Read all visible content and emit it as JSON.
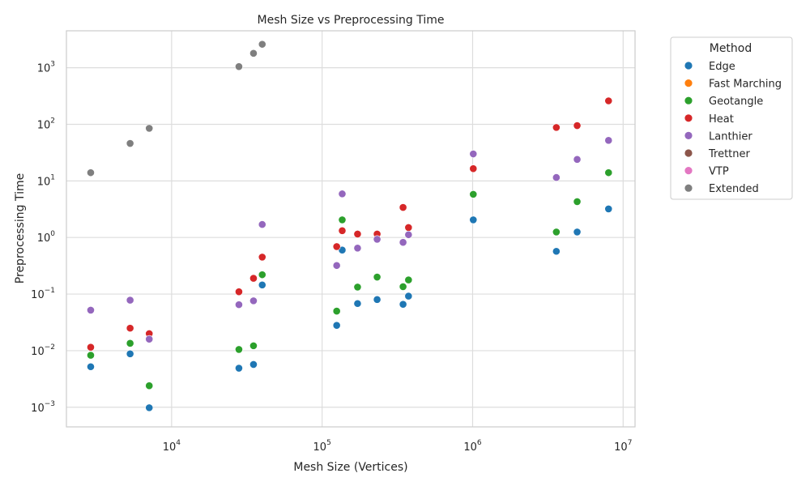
{
  "chart_data": {
    "type": "scatter",
    "title": "Mesh Size vs Preprocessing Time",
    "xlabel": "Mesh Size (Vertices)",
    "ylabel": "Preprocessing Time",
    "xscale": "log",
    "yscale": "log",
    "xlim": [
      2000,
      12000000
    ],
    "ylim": [
      0.00045,
      4500
    ],
    "grid": true,
    "x_ticks": [
      {
        "value": 10000,
        "base": "10",
        "exp": "4"
      },
      {
        "value": 100000,
        "base": "10",
        "exp": "5"
      },
      {
        "value": 1000000,
        "base": "10",
        "exp": "6"
      },
      {
        "value": 10000000,
        "base": "10",
        "exp": "7"
      }
    ],
    "y_ticks": [
      {
        "value": 0.001,
        "base": "10",
        "exp": "−3"
      },
      {
        "value": 0.01,
        "base": "10",
        "exp": "−2"
      },
      {
        "value": 0.1,
        "base": "10",
        "exp": "−1"
      },
      {
        "value": 1,
        "base": "10",
        "exp": "0"
      },
      {
        "value": 10,
        "base": "10",
        "exp": "1"
      },
      {
        "value": 100,
        "base": "10",
        "exp": "2"
      },
      {
        "value": 1000,
        "base": "10",
        "exp": "3"
      }
    ],
    "legend": {
      "title": "Method",
      "position": "outside-right"
    },
    "series": [
      {
        "name": "Edge",
        "color": "#1f77b4",
        "points": [
          [
            2900,
            0.0052
          ],
          [
            5300,
            0.0088
          ],
          [
            7100,
            0.00098
          ],
          [
            28000,
            0.0049
          ],
          [
            35000,
            0.0057
          ],
          [
            40000,
            0.145
          ],
          [
            125000,
            0.028
          ],
          [
            136000,
            0.6
          ],
          [
            172000,
            0.068
          ],
          [
            232000,
            0.08
          ],
          [
            345000,
            0.066
          ],
          [
            375000,
            0.092
          ],
          [
            1010000,
            2.05
          ],
          [
            3600000,
            0.57
          ],
          [
            4950000,
            1.25
          ],
          [
            8000000,
            3.2
          ]
        ]
      },
      {
        "name": "Fast Marching",
        "color": "#ff7f0e",
        "points": []
      },
      {
        "name": "Geotangle",
        "color": "#2ca02c",
        "points": [
          [
            2900,
            0.0083
          ],
          [
            5300,
            0.0135
          ],
          [
            7100,
            0.0024
          ],
          [
            28000,
            0.0105
          ],
          [
            35000,
            0.0122
          ],
          [
            40000,
            0.22
          ],
          [
            125000,
            0.05
          ],
          [
            136000,
            2.05
          ],
          [
            172000,
            0.133
          ],
          [
            232000,
            0.2
          ],
          [
            345000,
            0.135
          ],
          [
            375000,
            0.178
          ],
          [
            1010000,
            5.8
          ],
          [
            3600000,
            1.25
          ],
          [
            4950000,
            4.3
          ],
          [
            8000000,
            14
          ]
        ]
      },
      {
        "name": "Heat",
        "color": "#d62728",
        "points": [
          [
            2900,
            0.0115
          ],
          [
            5300,
            0.025
          ],
          [
            7100,
            0.02
          ],
          [
            28000,
            0.11
          ],
          [
            35000,
            0.19
          ],
          [
            40000,
            0.45
          ],
          [
            125000,
            0.69
          ],
          [
            136000,
            1.32
          ],
          [
            172000,
            1.15
          ],
          [
            232000,
            1.15
          ],
          [
            345000,
            3.4
          ],
          [
            375000,
            1.5
          ],
          [
            1010000,
            16.5
          ],
          [
            3600000,
            88
          ],
          [
            4950000,
            95
          ],
          [
            8000000,
            260
          ]
        ]
      },
      {
        "name": "Lanthier",
        "color": "#9467bd",
        "points": [
          [
            2900,
            0.052
          ],
          [
            5300,
            0.078
          ],
          [
            7100,
            0.016
          ],
          [
            28000,
            0.065
          ],
          [
            35000,
            0.076
          ],
          [
            40000,
            1.7
          ],
          [
            125000,
            0.32
          ],
          [
            136000,
            5.9
          ],
          [
            172000,
            0.65
          ],
          [
            232000,
            0.93
          ],
          [
            345000,
            0.82
          ],
          [
            375000,
            1.12
          ],
          [
            1010000,
            30
          ],
          [
            3600000,
            11.5
          ],
          [
            4950000,
            24
          ],
          [
            8000000,
            52
          ]
        ]
      },
      {
        "name": "Trettner",
        "color": "#8c564b",
        "points": []
      },
      {
        "name": "VTP",
        "color": "#e377c2",
        "points": []
      },
      {
        "name": "Extended",
        "color": "#7f7f7f",
        "points": [
          [
            2900,
            14
          ],
          [
            5300,
            46
          ],
          [
            7100,
            85
          ],
          [
            28000,
            1050
          ],
          [
            35000,
            1800
          ],
          [
            40000,
            2600
          ]
        ]
      }
    ]
  }
}
